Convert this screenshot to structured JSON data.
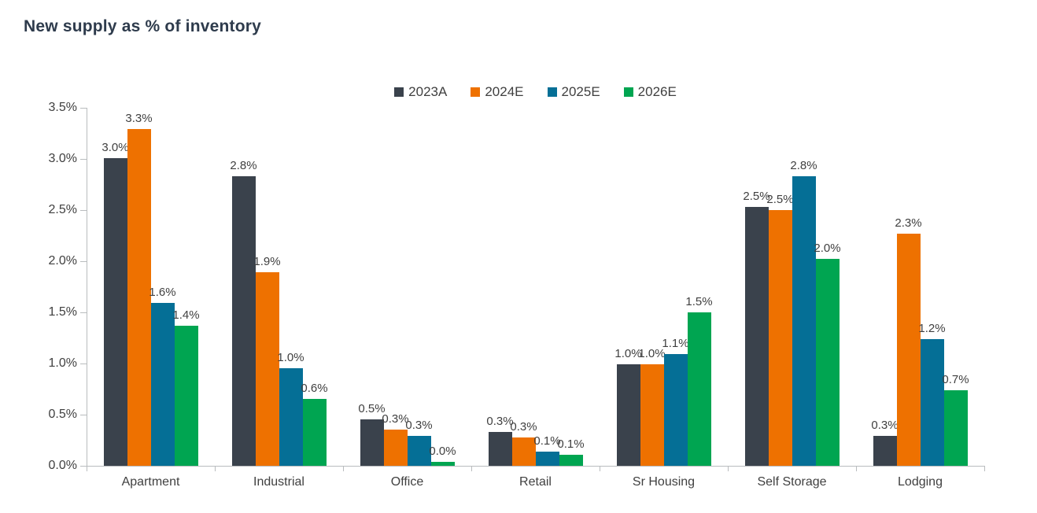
{
  "chart_data": {
    "type": "bar",
    "title": "New supply as % of inventory",
    "xlabel": "",
    "ylabel": "",
    "ylim": [
      0,
      3.5
    ],
    "ytick_step": 0.5,
    "ytick_labels": [
      "0.0%",
      "0.5%",
      "1.0%",
      "1.5%",
      "2.0%",
      "2.5%",
      "3.0%",
      "3.5%"
    ],
    "grid": false,
    "legend_position": "top-center",
    "categories": [
      "Apartment",
      "Industrial",
      "Office",
      "Retail",
      "Sr Housing",
      "Self Storage",
      "Lodging"
    ],
    "series": [
      {
        "name": "2023A",
        "color": "#3a424c",
        "values": [
          3.0,
          2.8,
          0.5,
          0.3,
          1.0,
          2.5,
          0.3
        ],
        "bar_heights_pct": [
          3.01,
          2.83,
          0.45,
          0.33,
          0.99,
          2.53,
          0.29
        ],
        "labels": [
          "3.0%",
          "2.8%",
          "0.5%",
          "0.3%",
          "1.0%",
          "2.5%",
          "0.3%"
        ]
      },
      {
        "name": "2024E",
        "color": "#ee7100",
        "values": [
          3.3,
          1.9,
          0.3,
          0.3,
          1.0,
          2.5,
          2.3
        ],
        "bar_heights_pct": [
          3.29,
          1.89,
          0.35,
          0.28,
          0.99,
          2.5,
          2.27
        ],
        "labels": [
          "3.3%",
          "1.9%",
          "0.3%",
          "0.3%",
          "1.0%",
          "2.5%",
          "2.3%"
        ]
      },
      {
        "name": "2025E",
        "color": "#056f96",
        "values": [
          1.6,
          1.0,
          0.3,
          0.1,
          1.1,
          2.8,
          1.2
        ],
        "bar_heights_pct": [
          1.59,
          0.95,
          0.29,
          0.14,
          1.09,
          2.83,
          1.24
        ],
        "labels": [
          "1.6%",
          "1.0%",
          "0.3%",
          "0.1%",
          "1.1%",
          "2.8%",
          "1.2%"
        ]
      },
      {
        "name": "2026E",
        "color": "#00a551",
        "values": [
          1.4,
          0.6,
          0.0,
          0.1,
          1.5,
          2.0,
          0.7
        ],
        "bar_heights_pct": [
          1.37,
          0.65,
          0.04,
          0.11,
          1.5,
          2.02,
          0.74
        ],
        "labels": [
          "1.4%",
          "0.6%",
          "0.0%",
          "0.1%",
          "1.5%",
          "2.0%",
          "0.7%"
        ]
      }
    ],
    "colors": {
      "axis": "#b9bcbe",
      "text": "#404040",
      "title": "#2e3b4c"
    }
  }
}
